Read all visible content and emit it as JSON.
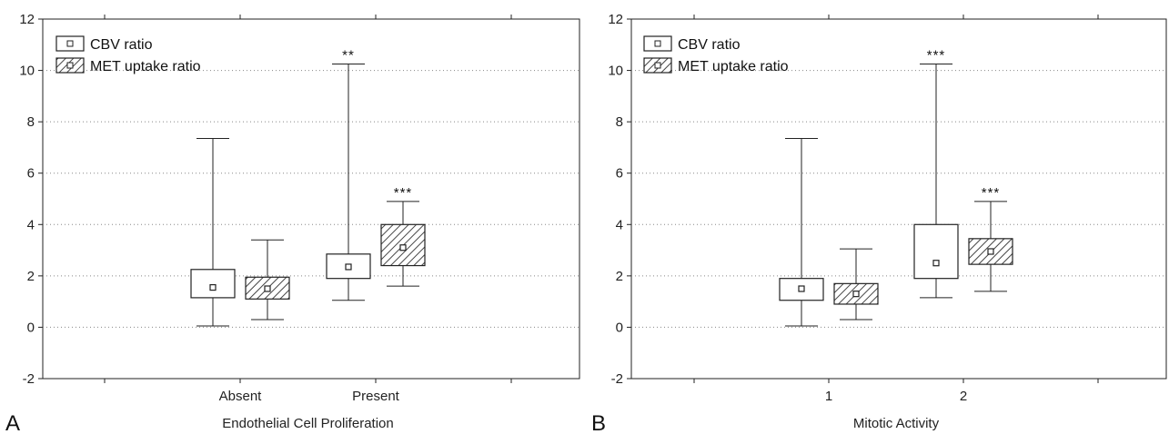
{
  "chart_data": [
    {
      "panel": "A",
      "type": "box",
      "xlabel": "Endothelial Cell Proliferation",
      "ylabel": "",
      "ylim": [
        -2,
        12
      ],
      "yticks": [
        -2,
        0,
        2,
        4,
        6,
        8,
        10,
        12
      ],
      "grid": "dotted-horizontal",
      "legend_position": "top-left",
      "categories": [
        "Absent",
        "Present"
      ],
      "series": [
        {
          "name": "CBV ratio",
          "pattern": "plain",
          "boxes": [
            {
              "category": "Absent",
              "min": 0.05,
              "q1": 1.15,
              "median": 1.55,
              "q3": 2.25,
              "max": 7.35,
              "sig": ""
            },
            {
              "category": "Present",
              "min": 1.05,
              "q1": 1.9,
              "median": 2.35,
              "q3": 2.85,
              "max": 10.25,
              "sig": "**"
            }
          ]
        },
        {
          "name": "MET uptake ratio",
          "pattern": "hatched",
          "boxes": [
            {
              "category": "Absent",
              "min": 0.3,
              "q1": 1.1,
              "median": 1.5,
              "q3": 1.95,
              "max": 3.4,
              "sig": ""
            },
            {
              "category": "Present",
              "min": 1.6,
              "q1": 2.4,
              "median": 3.1,
              "q3": 4.0,
              "max": 4.9,
              "sig": "***"
            }
          ]
        }
      ]
    },
    {
      "panel": "B",
      "type": "box",
      "xlabel": "Mitotic Activity",
      "ylabel": "",
      "ylim": [
        -2,
        12
      ],
      "yticks": [
        -2,
        0,
        2,
        4,
        6,
        8,
        10,
        12
      ],
      "grid": "dotted-horizontal",
      "legend_position": "top-left",
      "categories": [
        "1",
        "2"
      ],
      "series": [
        {
          "name": "CBV ratio",
          "pattern": "plain",
          "boxes": [
            {
              "category": "1",
              "min": 0.05,
              "q1": 1.05,
              "median": 1.5,
              "q3": 1.9,
              "max": 7.35,
              "sig": ""
            },
            {
              "category": "2",
              "min": 1.15,
              "q1": 1.9,
              "median": 2.5,
              "q3": 4.0,
              "max": 10.25,
              "sig": "***"
            }
          ]
        },
        {
          "name": "MET uptake ratio",
          "pattern": "hatched",
          "boxes": [
            {
              "category": "1",
              "min": 0.3,
              "q1": 0.9,
              "median": 1.3,
              "q3": 1.7,
              "max": 3.05,
              "sig": ""
            },
            {
              "category": "2",
              "min": 1.4,
              "q1": 2.45,
              "median": 2.95,
              "q3": 3.45,
              "max": 4.9,
              "sig": "***"
            }
          ]
        }
      ]
    }
  ]
}
